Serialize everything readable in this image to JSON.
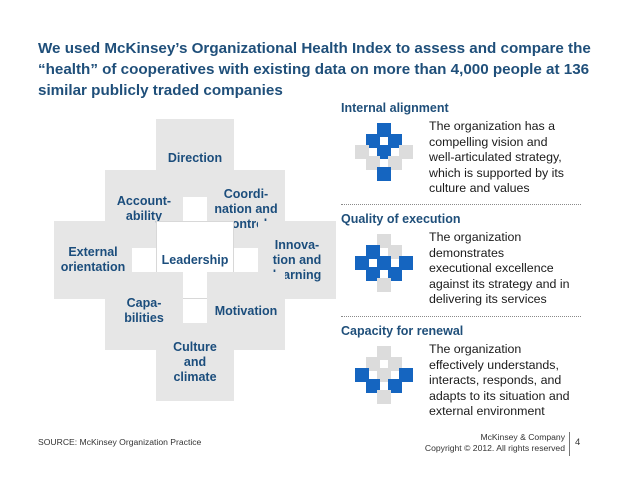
{
  "title": "We used McKinsey’s Organizational Health Index to assess and compare the “health” of cooperatives with existing data on more than 4,000 people at 136 similar publicly traded companies",
  "tiles": {
    "direction": "Direction",
    "accountability": "Account-\nability",
    "coordination": "Coordi-\nnation and\ncontrol",
    "external": "External\norientation",
    "leadership": "Leadership",
    "innovation": "Innova-\ntion and\nlearning",
    "capabilities": "Capa-\nbilities",
    "motivation": "Motivation",
    "culture": "Culture\nand\nclimate"
  },
  "panels": [
    {
      "heading": "Internal alignment",
      "text": "The organization has a\ncompelling vision and\nwell-articulated strategy,\nwhich is supported by its\nculture and values"
    },
    {
      "heading": "Quality of execution",
      "text": "The organization\ndemonstrates\nexecutional excellence\nagainst its strategy and in\ndelivering its services"
    },
    {
      "heading": "Capacity for renewal",
      "text": "The organization\neffectively understands,\ninteracts, responds, and\nadapts to its situation and\nexternal environment"
    }
  ],
  "colors": {
    "accent": "#1f4f7a",
    "tile": "#e6e6e6",
    "highlight": "#1565c0",
    "muted": "#dcdcdc"
  },
  "footer": {
    "source": "SOURCE: McKinsey Organization Practice",
    "company": "McKinsey & Company\nCopyright © 2012. All rights reserved",
    "page": "4"
  }
}
